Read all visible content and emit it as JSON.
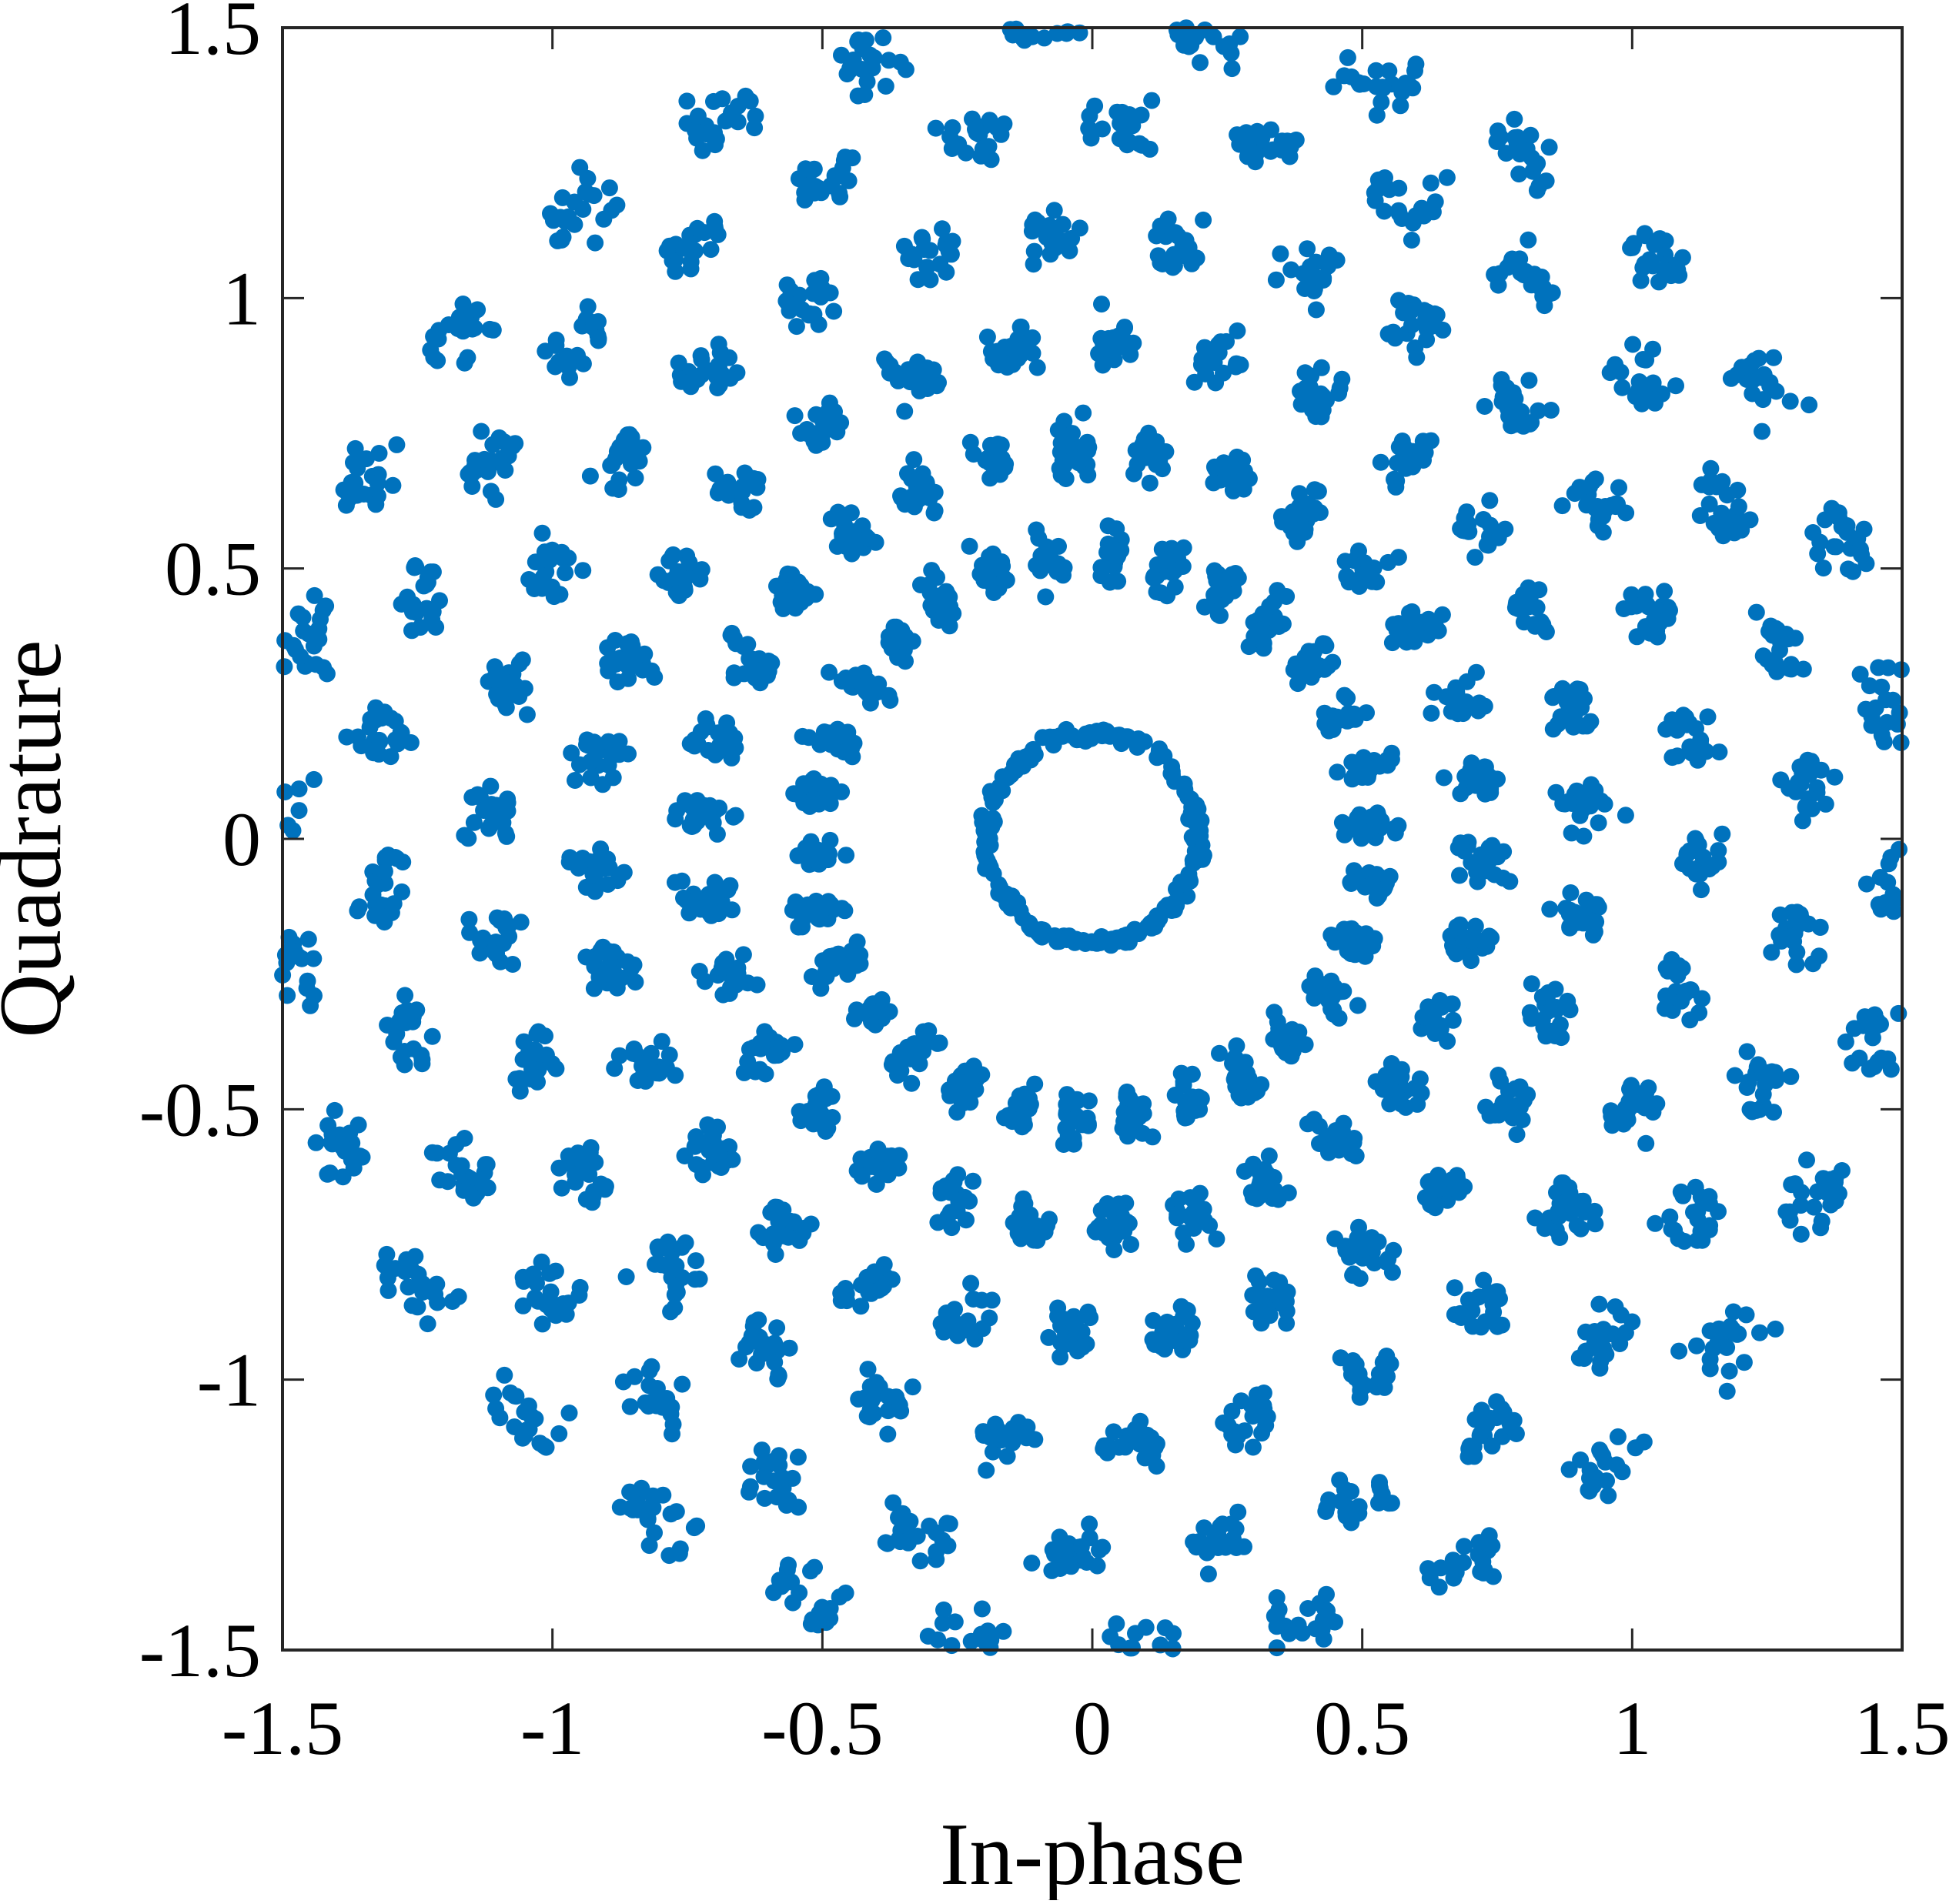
{
  "chart_data": {
    "type": "scatter",
    "title": "",
    "xlabel": "In-phase",
    "ylabel": "Quadrature",
    "xlim": [
      -1.5,
      1.5
    ],
    "ylim": [
      -1.5,
      1.5
    ],
    "xticks": [
      "-1.5",
      "-1",
      "-0.5",
      "0",
      "0.5",
      "1",
      "1.5"
    ],
    "yticks": [
      "1.5",
      "1",
      "0.5",
      "0",
      "-0.5",
      "-1",
      "-1.5"
    ],
    "grid": false,
    "legend": "none",
    "marker_color": "#0072BD",
    "ring": {
      "center": [
        0.0,
        0.0
      ],
      "radius": 0.195
    },
    "arms": [
      {
        "angle_deg": 2,
        "rings": [
          0.52,
          0.72,
          0.92,
          1.12,
          1.32,
          1.5
        ]
      },
      {
        "angle_deg": 14,
        "rings": [
          0.52,
          0.72,
          0.92,
          1.12,
          1.32,
          1.5
        ]
      },
      {
        "angle_deg": 26,
        "rings": [
          0.52,
          0.72,
          0.92,
          1.12,
          1.32,
          1.5
        ]
      },
      {
        "angle_deg": 38,
        "rings": [
          0.52,
          0.72,
          0.92,
          1.12,
          1.32,
          1.5
        ]
      },
      {
        "angle_deg": 50,
        "rings": [
          0.52,
          0.72,
          0.92,
          1.12,
          1.32,
          1.5
        ]
      },
      {
        "angle_deg": 62,
        "rings": [
          0.52,
          0.72,
          0.92,
          1.12,
          1.32,
          1.5
        ]
      },
      {
        "angle_deg": 74,
        "rings": [
          0.52,
          0.72,
          0.92,
          1.12,
          1.32,
          1.5
        ]
      },
      {
        "angle_deg": 86,
        "rings": [
          0.52,
          0.72,
          0.92,
          1.12,
          1.32,
          1.5
        ]
      },
      {
        "angle_deg": 98,
        "rings": [
          0.52,
          0.72,
          0.92,
          1.12,
          1.32,
          1.5
        ]
      },
      {
        "angle_deg": 110,
        "rings": [
          0.52,
          0.72,
          0.92,
          1.12,
          1.32,
          1.5
        ]
      },
      {
        "angle_deg": 122,
        "rings": [
          0.52,
          0.72,
          0.92,
          1.12,
          1.32,
          1.5
        ]
      },
      {
        "angle_deg": 134,
        "rings": [
          0.52,
          0.72,
          0.92,
          1.12,
          1.32,
          1.5
        ]
      },
      {
        "angle_deg": 146,
        "rings": [
          0.52,
          0.72,
          0.92,
          1.12,
          1.32,
          1.5
        ]
      },
      {
        "angle_deg": 158,
        "rings": [
          0.52,
          0.72,
          0.92,
          1.12,
          1.32,
          1.5
        ]
      },
      {
        "angle_deg": 170,
        "rings": [
          0.52,
          0.72,
          0.92,
          1.12,
          1.32,
          1.5
        ]
      },
      {
        "angle_deg": 182,
        "rings": [
          0.52,
          0.72,
          0.92,
          1.12,
          1.32,
          1.5
        ]
      },
      {
        "angle_deg": 194,
        "rings": [
          0.52,
          0.72,
          0.92,
          1.12,
          1.32,
          1.5
        ]
      },
      {
        "angle_deg": 206,
        "rings": [
          0.52,
          0.72,
          0.92,
          1.12,
          1.32,
          1.5
        ]
      },
      {
        "angle_deg": 218,
        "rings": [
          0.52,
          0.72,
          0.92,
          1.12,
          1.32,
          1.5
        ]
      },
      {
        "angle_deg": 230,
        "rings": [
          0.52,
          0.72,
          0.92,
          1.12,
          1.32,
          1.5
        ]
      },
      {
        "angle_deg": 242,
        "rings": [
          0.52,
          0.72,
          0.92,
          1.12,
          1.32,
          1.5
        ]
      },
      {
        "angle_deg": 254,
        "rings": [
          0.52,
          0.72,
          0.92,
          1.12,
          1.32,
          1.5
        ]
      },
      {
        "angle_deg": 266,
        "rings": [
          0.52,
          0.72,
          0.92,
          1.12,
          1.32,
          1.5
        ]
      },
      {
        "angle_deg": 278,
        "rings": [
          0.52,
          0.72,
          0.92,
          1.12,
          1.32,
          1.5
        ]
      },
      {
        "angle_deg": 290,
        "rings": [
          0.52,
          0.72,
          0.92,
          1.12,
          1.32,
          1.5
        ]
      },
      {
        "angle_deg": 302,
        "rings": [
          0.52,
          0.72,
          0.92,
          1.12,
          1.32,
          1.5
        ]
      },
      {
        "angle_deg": 314,
        "rings": [
          0.52,
          0.72,
          0.92,
          1.12,
          1.32,
          1.5
        ]
      },
      {
        "angle_deg": 326,
        "rings": [
          0.52,
          0.72,
          0.92,
          1.12,
          1.32,
          1.5
        ]
      },
      {
        "angle_deg": 338,
        "rings": [
          0.52,
          0.72,
          0.92,
          1.12,
          1.32,
          1.5
        ]
      },
      {
        "angle_deg": 350,
        "rings": [
          0.52,
          0.72,
          0.92,
          1.12,
          1.32,
          1.5
        ]
      }
    ]
  }
}
